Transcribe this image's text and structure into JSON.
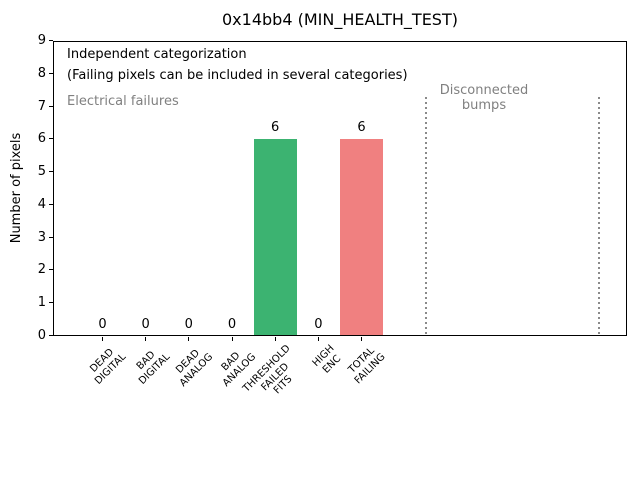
{
  "chart_data": {
    "type": "bar",
    "title": "0x14bb4 (MIN_HEALTH_TEST)",
    "xlabel": "",
    "ylabel": "Number of pixels",
    "ylim": [
      0,
      9
    ],
    "yticks": [
      0,
      1,
      2,
      3,
      4,
      5,
      6,
      7,
      8,
      9
    ],
    "categories": [
      [
        "DEAD",
        "DIGITAL"
      ],
      [
        "BAD",
        "DIGITAL"
      ],
      [
        "DEAD",
        "ANALOG"
      ],
      [
        "BAD",
        "ANALOG"
      ],
      [
        "THRESHOLD",
        "FAILED",
        "FITS"
      ],
      [
        "HIGH",
        "ENC"
      ],
      [
        "TOTAL",
        "FAILING"
      ]
    ],
    "category_names": [
      "DEAD DIGITAL",
      "BAD DIGITAL",
      "DEAD ANALOG",
      "BAD ANALOG",
      "THRESHOLD FAILED FITS",
      "HIGH ENC",
      "TOTAL FAILING"
    ],
    "values": [
      0,
      0,
      0,
      0,
      6,
      0,
      6
    ],
    "value_labels": [
      "0",
      "0",
      "0",
      "0",
      "6",
      "0",
      "6"
    ],
    "bar_colors": [
      null,
      null,
      null,
      null,
      "#3cb371",
      null,
      "#f08080"
    ],
    "grid": false,
    "legend": false,
    "annotations": {
      "independent": "Independent categorization",
      "failing_note": "(Failing pixels can be included in several categories)",
      "electrical": "Electrical failures",
      "disconnected_line1": "Disconnected",
      "disconnected_line2": "bumps"
    },
    "separators": {
      "style": "dotted",
      "color": "#8a8a8a",
      "x_data": [
        7.5,
        11.5
      ]
    }
  },
  "colors": {
    "bar_green": "#3cb371",
    "bar_red": "#f08080",
    "annotation_gray": "#808080",
    "spine_black": "#000000",
    "background": "#ffffff"
  }
}
